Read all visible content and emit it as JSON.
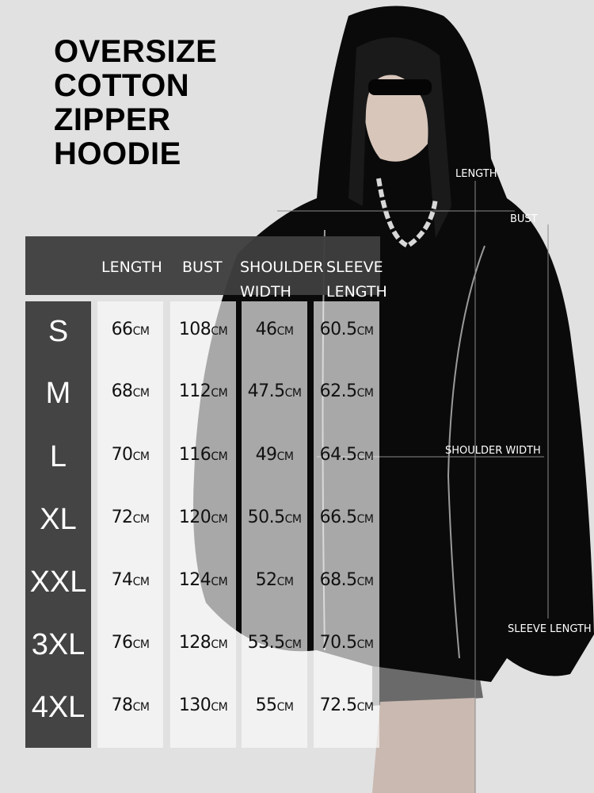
{
  "title_lines": [
    "OVERSIZE",
    "COTTON",
    "ZIPPER",
    "HOODIE"
  ],
  "table": {
    "headers": [
      {
        "line1": "LENGTH",
        "line2": ""
      },
      {
        "line1": "BUST",
        "line2": ""
      },
      {
        "line1": "SHOULDER",
        "line2": "WIDTH"
      },
      {
        "line1": "SLEEVE",
        "line2": "LENGTH"
      }
    ],
    "unit": "CM",
    "rows": [
      {
        "size": "S",
        "values": [
          "66",
          "108",
          "46",
          "60.5"
        ]
      },
      {
        "size": "M",
        "values": [
          "68",
          "112",
          "47.5",
          "62.5"
        ]
      },
      {
        "size": "L",
        "values": [
          "70",
          "116",
          "49",
          "64.5"
        ]
      },
      {
        "size": "XL",
        "values": [
          "72",
          "120",
          "50.5",
          "66.5"
        ]
      },
      {
        "size": "XXL",
        "values": [
          "74",
          "124",
          "52",
          "68.5"
        ]
      },
      {
        "size": "3XL",
        "values": [
          "76",
          "128",
          "53.5",
          "70.5"
        ]
      },
      {
        "size": "4XL",
        "values": [
          "78",
          "130",
          "55",
          "72.5"
        ]
      }
    ]
  },
  "measure_labels": {
    "length": "LENGTH",
    "bust": "BUST",
    "shoulder_width": "SHOULDER WIDTH",
    "sleeve_length": "SLEEVE LENGTH"
  },
  "colors": {
    "background": "#e1e1e1",
    "hoodie": "#0a0a0a",
    "table_dark": "#444444"
  }
}
